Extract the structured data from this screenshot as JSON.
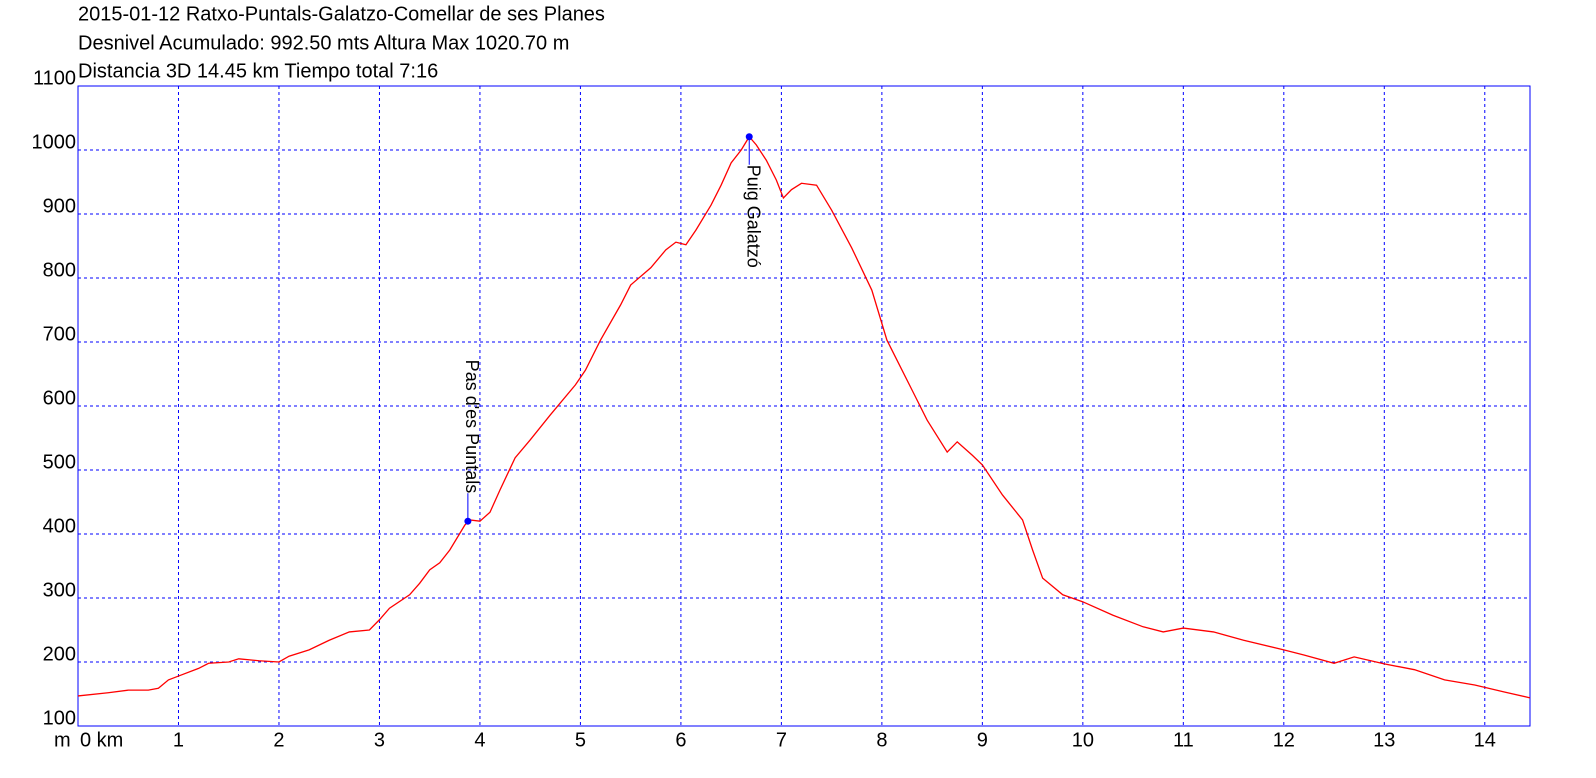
{
  "chart_data": {
    "type": "line",
    "title": "2015-01-12 Ratxo-Puntals-Galatzo-Comellar de ses Planes",
    "subtitle": [
      "Desnivel Acumulado: 992.50 mts  Altura Max 1020.70 m",
      "Distancia 3D 14.45 km  Tiempo total 7:16"
    ],
    "ylabel": "m",
    "x": [
      0,
      0.3,
      0.5,
      0.7,
      0.8,
      0.9,
      1.0,
      1.2,
      1.3,
      1.5,
      1.6,
      1.8,
      2.0,
      2.1,
      2.3,
      2.5,
      2.7,
      2.9,
      3.0,
      3.1,
      3.3,
      3.4,
      3.5,
      3.6,
      3.7,
      3.85,
      3.9,
      4.0,
      4.1,
      4.2,
      4.35,
      4.5,
      4.7,
      4.95,
      5.05,
      5.2,
      5.4,
      5.5,
      5.7,
      5.85,
      5.95,
      6.05,
      6.15,
      6.3,
      6.4,
      6.5,
      6.6,
      6.68,
      6.75,
      6.85,
      6.95,
      7.02,
      7.1,
      7.2,
      7.35,
      7.5,
      7.7,
      7.9,
      8.05,
      8.3,
      8.45,
      8.65,
      8.75,
      8.9,
      9.0,
      9.2,
      9.4,
      9.5,
      9.6,
      9.8,
      10.0,
      10.3,
      10.6,
      10.8,
      11.0,
      11.3,
      11.6,
      12.0,
      12.2,
      12.5,
      12.7,
      13.0,
      13.3,
      13.6,
      13.9,
      14.2,
      14.45
    ],
    "series": [
      {
        "color": "#ff0000",
        "values": [
          147,
          152,
          156,
          156,
          159,
          172,
          178,
          190,
          198,
          200,
          205,
          202,
          200,
          209,
          219,
          234,
          247,
          250,
          266,
          284,
          305,
          323,
          344,
          355,
          375,
          414,
          422,
          420,
          434,
          469,
          519,
          547,
          586,
          633,
          656,
          703,
          758,
          789,
          816,
          844,
          856,
          852,
          875,
          914,
          945,
          980,
          1000,
          1020.7,
          1008,
          984,
          953,
          925,
          938,
          948,
          945,
          906,
          847,
          781,
          703,
          625,
          578,
          528,
          544,
          523,
          508,
          461,
          422,
          375,
          331,
          305,
          294,
          273,
          255,
          247,
          253,
          247,
          234,
          219,
          211,
          198,
          208,
          197,
          188,
          172,
          164,
          153,
          144
        ]
      }
    ],
    "annotations": [
      {
        "text": "Pas d'es Puntals",
        "x": 3.88,
        "y": 420,
        "color": "#0000ff"
      },
      {
        "text": "Puig Galatzó",
        "x": 6.68,
        "y": 1020.7,
        "color": "#0000ff"
      }
    ],
    "xlim": [
      0,
      14.45
    ],
    "ylim": [
      100,
      1100
    ],
    "xticks": [
      {
        "value": 0,
        "label": "0 km"
      },
      1,
      2,
      3,
      4,
      5,
      6,
      7,
      8,
      9,
      10,
      11,
      12,
      13,
      14
    ],
    "yticks": [
      100,
      200,
      300,
      400,
      500,
      600,
      700,
      800,
      900,
      1000,
      1100
    ],
    "grid": true,
    "grid_color": "#0000ff",
    "frame_color": "#0000ff"
  }
}
